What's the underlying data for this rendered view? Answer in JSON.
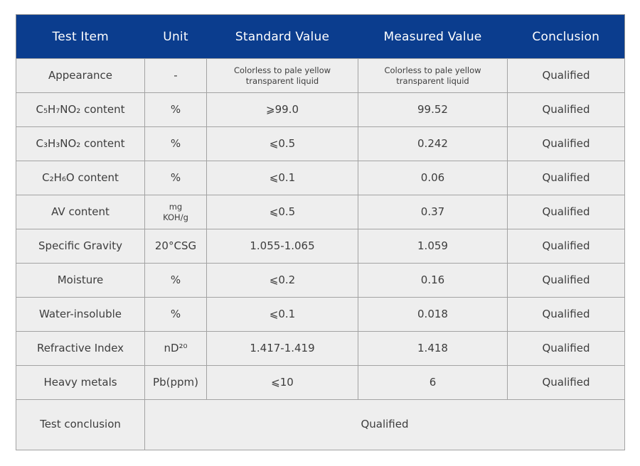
{
  "colors": {
    "header_bg": "#0b3d8e",
    "header_text": "#ffffff",
    "row_bg": "#eeeeee",
    "border": "#a3a3a3",
    "body_text": "#3d3d3d",
    "page_bg": "#ffffff"
  },
  "table": {
    "headers": [
      "Test Item",
      "Unit",
      "Standard Value",
      "Measured Value",
      "Conclusion"
    ],
    "rows": [
      {
        "item": "Appearance",
        "unit": "-",
        "standard": "Colorless to pale yellow transparent liquid",
        "measured": "Colorless to pale yellow transparent liquid",
        "conclusion": "Qualified",
        "standard_small": true,
        "measured_small": true
      },
      {
        "item": "C₅H₇NO₂ content",
        "unit": "%",
        "standard": "⩾99.0",
        "measured": "99.52",
        "conclusion": "Qualified"
      },
      {
        "item": "C₃H₃NO₂ content",
        "unit": "%",
        "standard": "⩽0.5",
        "measured": "0.242",
        "conclusion": "Qualified"
      },
      {
        "item": "C₂H₆O content",
        "unit": "%",
        "standard": "⩽0.1",
        "measured": "0.06",
        "conclusion": "Qualified"
      },
      {
        "item": "AV content",
        "unit": "mg KOH/g",
        "unit_small": true,
        "standard": "⩽0.5",
        "measured": "0.37",
        "conclusion": "Qualified"
      },
      {
        "item": "Specific Gravity",
        "unit": "20°CSG",
        "standard": "1.055-1.065",
        "measured": "1.059",
        "conclusion": "Qualified"
      },
      {
        "item": "Moisture",
        "unit": "%",
        "standard": "⩽0.2",
        "measured": "0.16",
        "conclusion": "Qualified"
      },
      {
        "item": "Water-insoluble",
        "unit": "%",
        "standard": "⩽0.1",
        "measured": "0.018",
        "conclusion": "Qualified"
      },
      {
        "item": "Refractive Index",
        "unit": "nD²⁰",
        "standard": "1.417-1.419",
        "measured": "1.418",
        "conclusion": "Qualified"
      },
      {
        "item": "Heavy metals",
        "unit": "Pb(ppm)",
        "standard": "⩽10",
        "measured": "6",
        "conclusion": "Qualified"
      }
    ],
    "footer": {
      "item": "Test conclusion",
      "value": "Qualified"
    }
  }
}
